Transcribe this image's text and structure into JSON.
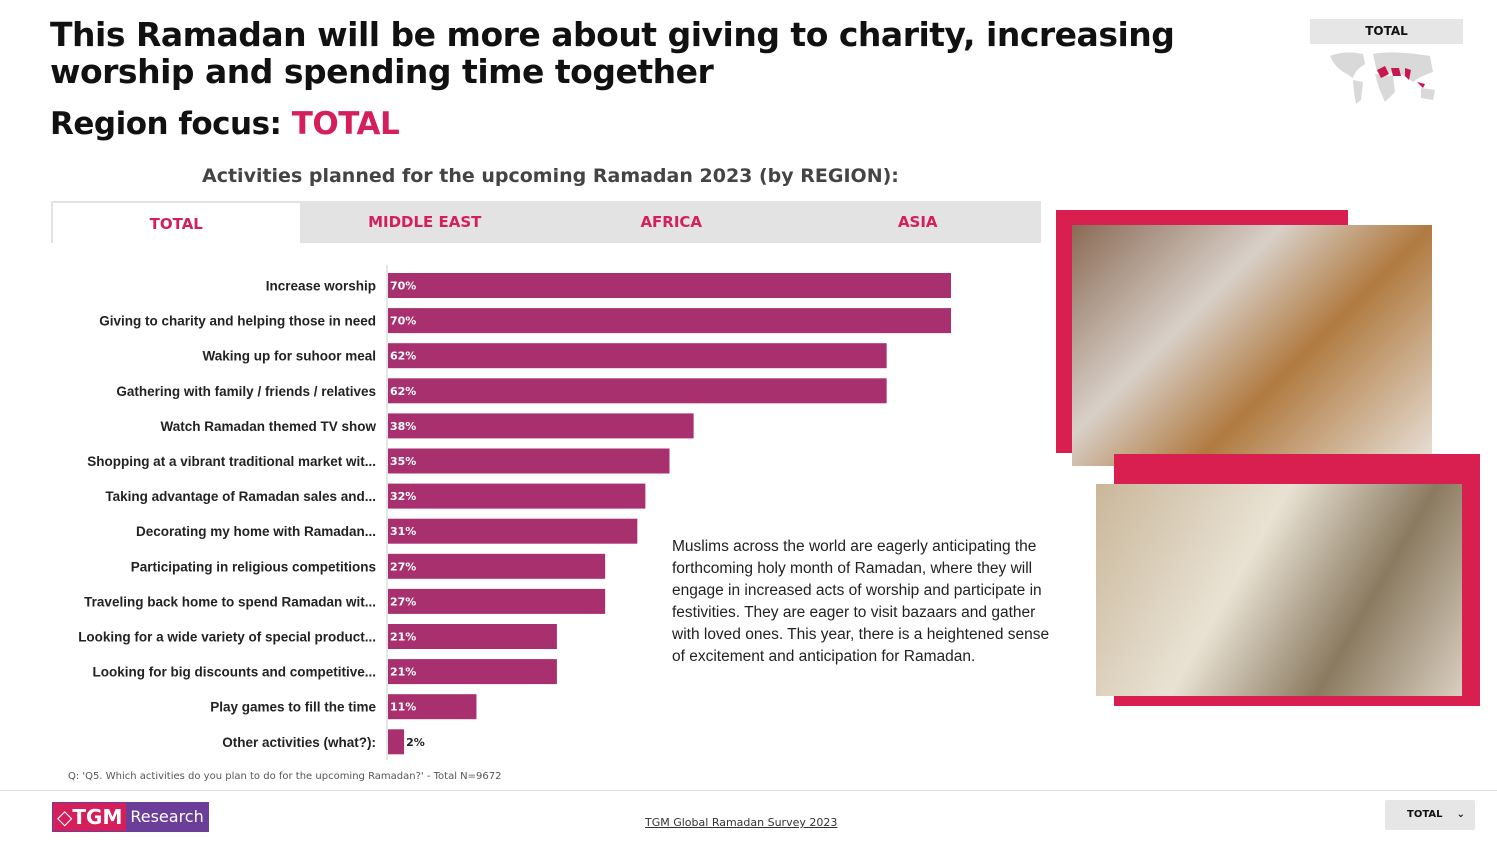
{
  "header": {
    "title": "This Ramadan will be more about giving to charity, increasing worship and spending time together",
    "region_prefix": "Region focus: ",
    "region_value": "TOTAL",
    "map_label": "TOTAL"
  },
  "tabs": [
    {
      "label": "TOTAL",
      "active": true
    },
    {
      "label": "MIDDLE EAST"
    },
    {
      "label": "AFRICA"
    },
    {
      "label": "ASIA"
    }
  ],
  "chart_data": {
    "type": "bar",
    "orientation": "horizontal",
    "title": "Activities planned for the upcoming Ramadan 2023 (by REGION):",
    "bar_color": "#a8306e",
    "categories": [
      "Increase worship",
      "Giving to charity and helping those in need",
      "Waking up for suhoor meal",
      "Gathering with family / friends / relatives",
      "Watch Ramadan themed TV show",
      "Shopping at a vibrant traditional market wit...",
      "Taking advantage of Ramadan sales and...",
      "Decorating my home with Ramadan...",
      "Participating in religious competitions",
      "Traveling back home to spend Ramadan wit...",
      "Looking for a wide variety of special product...",
      "Looking for big discounts and competitive...",
      "Play games to fill the time",
      "Other activities (what?):"
    ],
    "values": [
      70,
      70,
      62,
      62,
      38,
      35,
      32,
      31,
      27,
      27,
      21,
      21,
      11,
      2
    ],
    "labels": [
      "70%",
      "70%",
      "62%",
      "62%",
      "38%",
      "35%",
      "32%",
      "31%",
      "27%",
      "27%",
      "21%",
      "21%",
      "11%",
      "2%"
    ]
  },
  "description": "Muslims across the world are eagerly anticipating the forthcoming holy month of Ramadan, where they will engage in increased acts of worship and participate in festivities. They are eager to visit bazaars and gather with loved ones. This year, there is a heightened sense of excitement and anticipation for Ramadan.",
  "note": "Q: 'Q5. Which activities do you plan to do for the upcoming Ramadan?' - Total N=9672",
  "footer": {
    "logo_a": "◇TGM",
    "logo_b": "Research",
    "survey": "TGM Global Ramadan Survey 2023",
    "dropdown": "TOTAL"
  },
  "colors": {
    "accent": "#d41f5b",
    "frame": "#d81f50",
    "bar": "#a8306e"
  }
}
